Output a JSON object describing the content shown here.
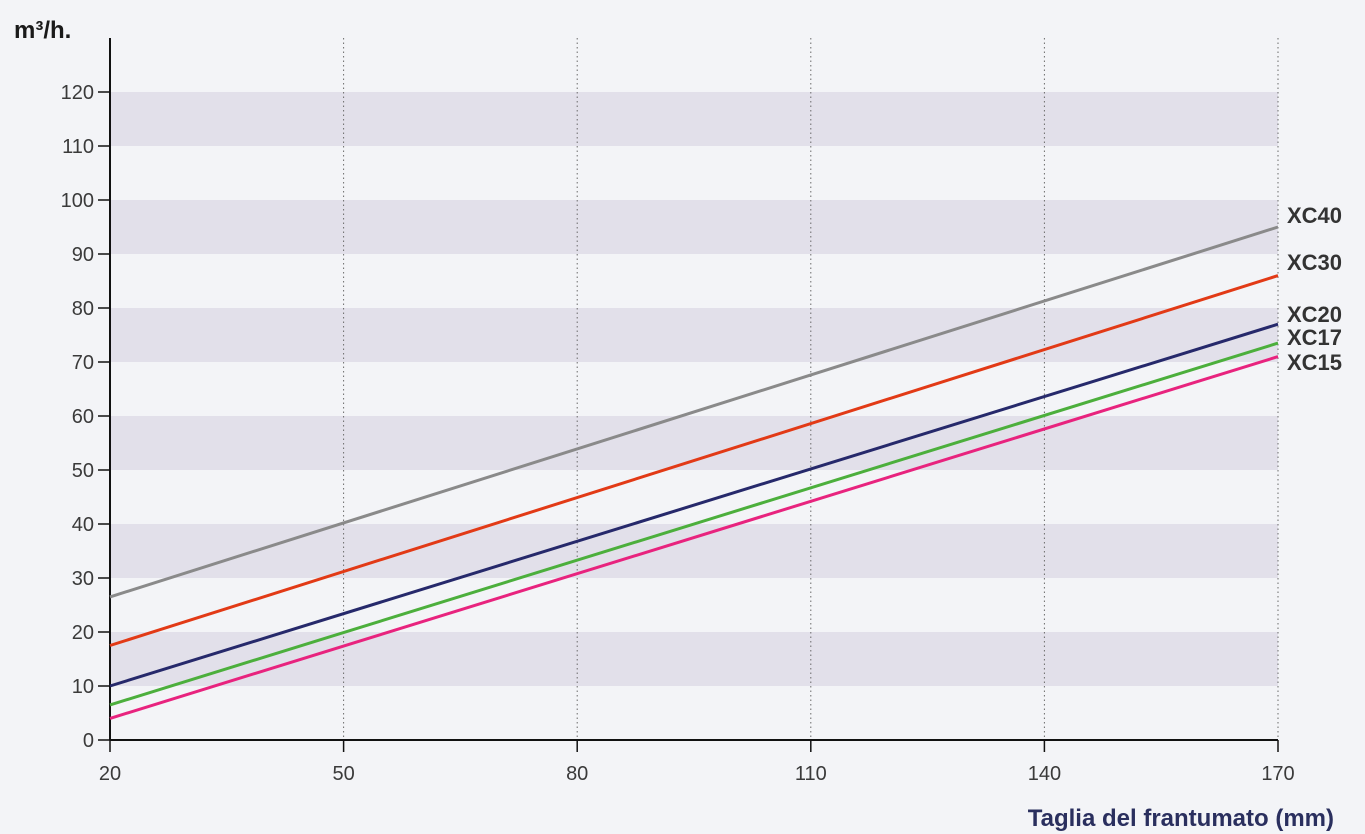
{
  "chart_data": {
    "type": "line",
    "xlabel": "Taglia del frantumato (mm)",
    "ylabel": "m³/h.",
    "xlim": [
      20,
      170
    ],
    "ylim": [
      0,
      120
    ],
    "x_ticks": [
      20,
      50,
      80,
      110,
      140,
      170
    ],
    "y_ticks": [
      0,
      10,
      20,
      30,
      40,
      50,
      60,
      70,
      80,
      90,
      100,
      110,
      120
    ],
    "grid": "vertical dotted lines at x ticks; alternating shaded bands every 10 units",
    "legend": "labels at right end of lines",
    "series": [
      {
        "name": "XC40",
        "color": "#8a8a8a",
        "x": [
          20,
          170
        ],
        "values": [
          26.5,
          95
        ]
      },
      {
        "name": "XC30",
        "color": "#e23a16",
        "x": [
          20,
          170
        ],
        "values": [
          17.5,
          86
        ]
      },
      {
        "name": "XC20",
        "color": "#26296b",
        "x": [
          20,
          170
        ],
        "values": [
          10,
          77
        ]
      },
      {
        "name": "XC17",
        "color": "#4caf3c",
        "x": [
          20,
          170
        ],
        "values": [
          6.5,
          73.5
        ]
      },
      {
        "name": "XC15",
        "color": "#e8237e",
        "x": [
          20,
          170
        ],
        "values": [
          4,
          71
        ]
      }
    ]
  }
}
